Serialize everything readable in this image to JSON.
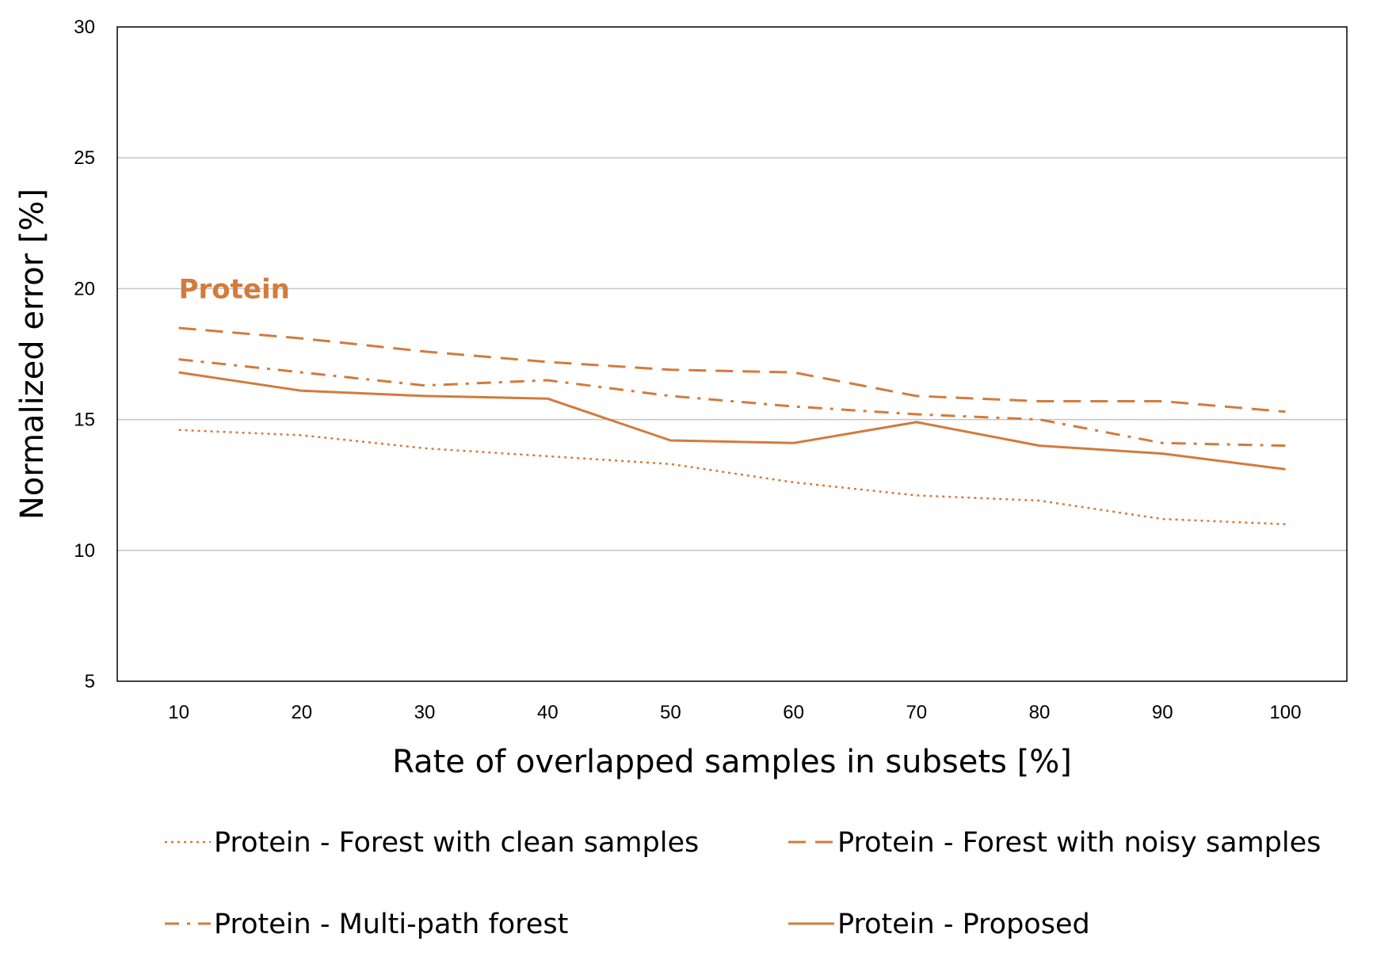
{
  "chart_data": {
    "type": "line",
    "title": "",
    "xlabel": "Rate of overlapped samples in subsets [%]",
    "ylabel": "Normalized error [%]",
    "x": [
      10,
      20,
      30,
      40,
      50,
      60,
      70,
      80,
      90,
      100
    ],
    "x_tick_labels": [
      "10",
      "20",
      "30",
      "40",
      "50",
      "60",
      "70",
      "80",
      "90",
      "100"
    ],
    "ylim": [
      5,
      30
    ],
    "y_ticks": [
      5,
      10,
      15,
      20,
      25,
      30
    ],
    "y_tick_labels": [
      "5",
      "10",
      "15",
      "20",
      "25",
      "30"
    ],
    "grid": "horizontal",
    "annotation": "Protein",
    "annotation_position": {
      "x": 10,
      "y": 20
    },
    "line_color": "#D27B3C",
    "legend_placement": "bottom",
    "series": [
      {
        "name": "Protein - Forest with clean samples",
        "style": "dotted",
        "values": [
          14.6,
          14.4,
          13.9,
          13.6,
          13.3,
          12.6,
          12.1,
          11.9,
          11.2,
          11.0
        ]
      },
      {
        "name": "Protein - Forest with noisy samples",
        "style": "dashed",
        "values": [
          18.5,
          18.1,
          17.6,
          17.2,
          16.9,
          16.8,
          15.9,
          15.7,
          15.7,
          15.3
        ]
      },
      {
        "name": "Protein - Multi-path forest",
        "style": "dash-dot",
        "values": [
          17.3,
          16.8,
          16.3,
          16.5,
          15.9,
          15.5,
          15.2,
          15.0,
          14.1,
          14.0
        ]
      },
      {
        "name": "Protein - Proposed",
        "style": "solid",
        "values": [
          16.8,
          16.1,
          15.9,
          15.8,
          14.2,
          14.1,
          14.9,
          14.0,
          13.7,
          13.1
        ]
      }
    ]
  }
}
